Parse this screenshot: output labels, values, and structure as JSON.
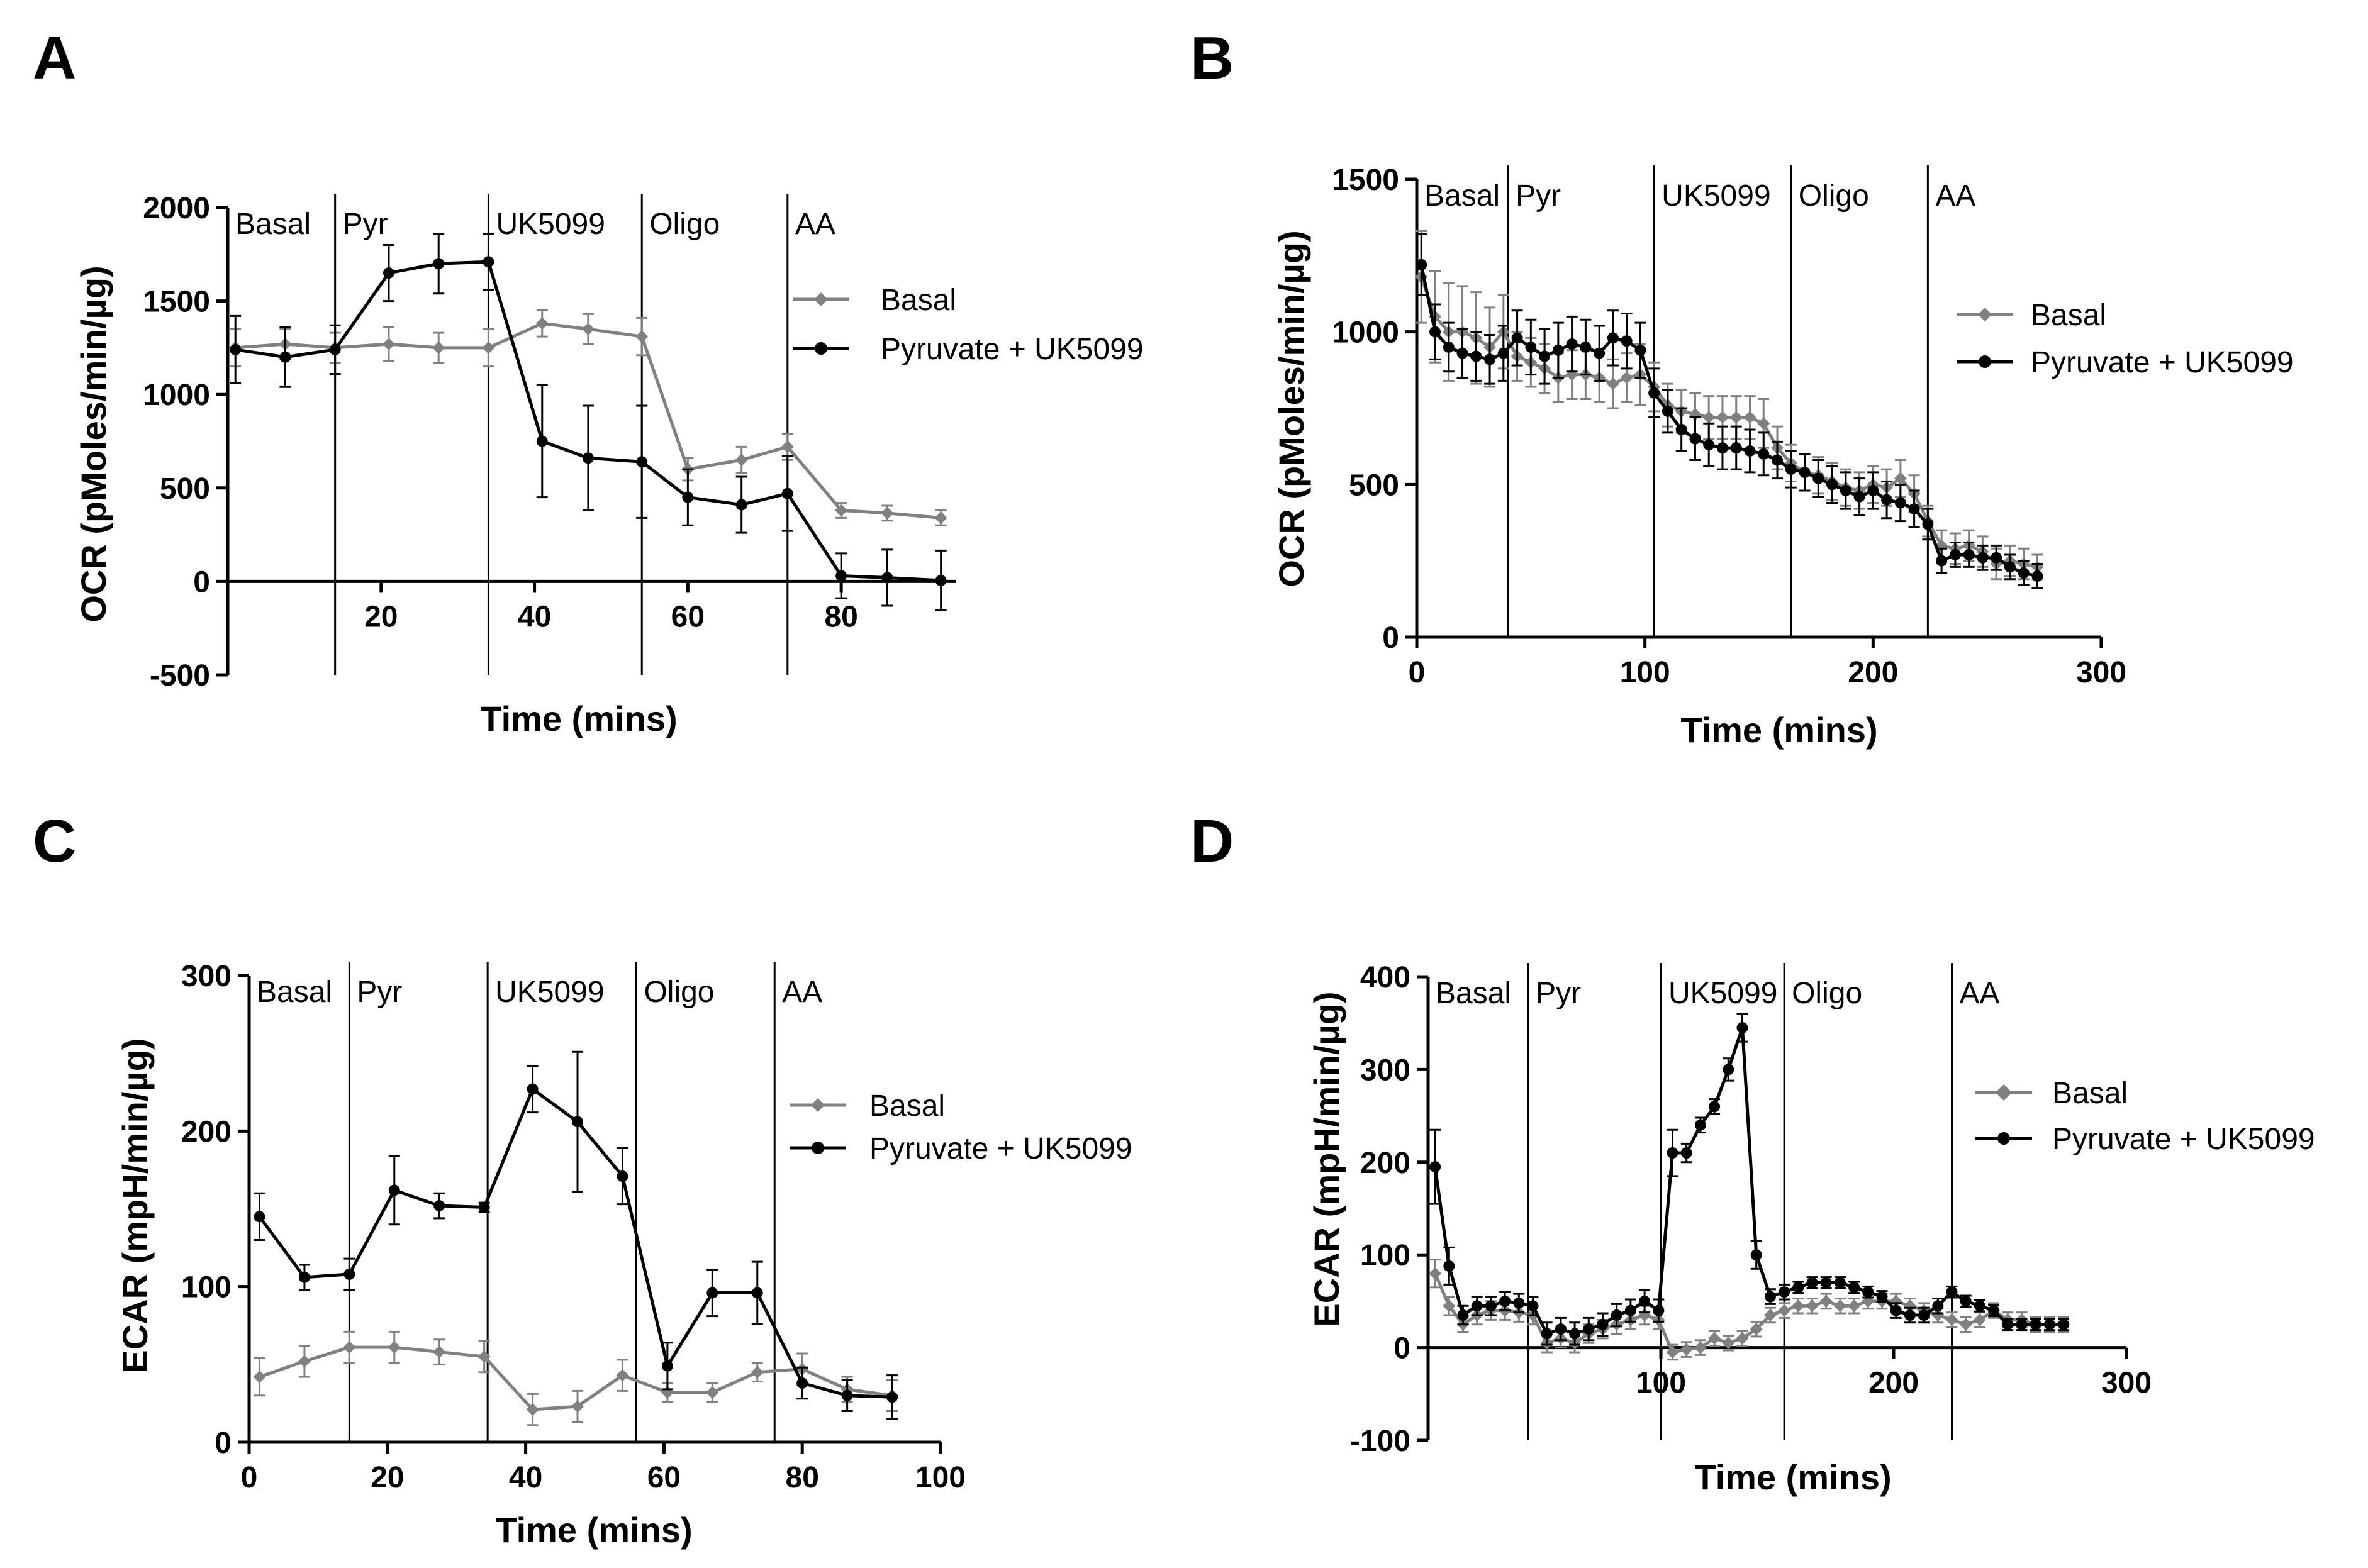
{
  "colors": {
    "basal": "#808080",
    "pyruvate": "#000000",
    "axis": "#000000"
  },
  "chart_data": [
    {
      "panel": "A",
      "type": "line",
      "xlabel": "Time (mins)",
      "ylabel": "OCR (pMoles/min/µg)",
      "xlim": [
        0,
        95
      ],
      "ylim": [
        -500,
        2000
      ],
      "xticks": [
        20,
        40,
        60,
        80
      ],
      "yticks": [
        -500,
        0,
        500,
        1000,
        1500,
        2000
      ],
      "zero_baseline": true,
      "phases": [
        {
          "label": "Basal",
          "x": 0
        },
        {
          "label": "Pyr",
          "x": 14
        },
        {
          "label": "UK5099",
          "x": 34
        },
        {
          "label": "Oligo",
          "x": 54
        },
        {
          "label": "AA",
          "x": 73
        }
      ],
      "legend": {
        "position": "right"
      },
      "series": [
        {
          "name": "Basal",
          "color_key": "basal",
          "marker": "diamond",
          "x": [
            1,
            7.5,
            14,
            21,
            27.5,
            34,
            41,
            47,
            54,
            60,
            67,
            73,
            80,
            86,
            93
          ],
          "y": [
            1250,
            1270,
            1250,
            1270,
            1250,
            1250,
            1380,
            1350,
            1310,
            600,
            650,
            720,
            380,
            365,
            340
          ],
          "err": [
            100,
            80,
            80,
            90,
            80,
            100,
            70,
            80,
            100,
            60,
            70,
            70,
            40,
            40,
            40
          ]
        },
        {
          "name": "Pyruvate + UK5099",
          "color_key": "pyruvate",
          "marker": "circle",
          "x": [
            1,
            7.5,
            14,
            21,
            27.5,
            34,
            41,
            47,
            54,
            60,
            67,
            73,
            80,
            86,
            93
          ],
          "y": [
            1240,
            1200,
            1240,
            1650,
            1700,
            1710,
            750,
            660,
            640,
            450,
            410,
            470,
            30,
            20,
            5
          ],
          "err": [
            180,
            160,
            130,
            150,
            160,
            150,
            300,
            280,
            300,
            150,
            150,
            200,
            120,
            150,
            160
          ]
        }
      ]
    },
    {
      "panel": "B",
      "type": "line",
      "xlabel": "Time (mins)",
      "ylabel": "OCR (pMoles/min/µg)",
      "xlim": [
        0,
        300
      ],
      "ylim": [
        0,
        1500
      ],
      "xticks": [
        0,
        100,
        200,
        300
      ],
      "yticks": [
        0,
        500,
        1000,
        1500
      ],
      "zero_baseline": false,
      "phases": [
        {
          "label": "Basal",
          "x": 0
        },
        {
          "label": "Pyr",
          "x": 40
        },
        {
          "label": "UK5099",
          "x": 104
        },
        {
          "label": "Oligo",
          "x": 164
        },
        {
          "label": "AA",
          "x": 224
        }
      ],
      "legend": {
        "position": "right"
      },
      "series": [
        {
          "name": "Basal",
          "color_key": "basal",
          "marker": "diamond",
          "x": [
            2,
            8,
            14,
            20,
            26,
            32,
            38,
            44,
            50,
            56,
            62,
            68,
            74,
            80,
            86,
            92,
            98,
            104,
            110,
            116,
            122,
            128,
            134,
            140,
            146,
            152,
            158,
            164,
            170,
            176,
            182,
            188,
            194,
            200,
            206,
            212,
            218,
            224,
            230,
            236,
            242,
            248,
            254,
            260,
            266,
            272
          ],
          "y": [
            1180,
            1050,
            1000,
            1000,
            980,
            950,
            1000,
            920,
            900,
            880,
            850,
            860,
            860,
            850,
            830,
            850,
            860,
            820,
            760,
            740,
            730,
            720,
            720,
            720,
            720,
            700,
            620,
            570,
            540,
            530,
            510,
            490,
            480,
            500,
            490,
            520,
            470,
            380,
            300,
            290,
            300,
            280,
            240,
            250,
            240,
            230
          ],
          "err": [
            150,
            150,
            160,
            150,
            150,
            130,
            120,
            80,
            80,
            80,
            80,
            80,
            80,
            80,
            80,
            80,
            100,
            80,
            70,
            70,
            70,
            70,
            70,
            70,
            70,
            80,
            70,
            60,
            60,
            60,
            60,
            60,
            60,
            60,
            60,
            60,
            60,
            50,
            50,
            50,
            50,
            50,
            50,
            50,
            50,
            40
          ]
        },
        {
          "name": "Pyruvate + UK5099",
          "color_key": "pyruvate",
          "marker": "circle",
          "x": [
            2,
            8,
            14,
            20,
            26,
            32,
            38,
            44,
            50,
            56,
            62,
            68,
            74,
            80,
            86,
            92,
            98,
            104,
            110,
            116,
            122,
            128,
            134,
            140,
            146,
            152,
            158,
            164,
            170,
            176,
            182,
            188,
            194,
            200,
            206,
            212,
            218,
            224,
            230,
            236,
            242,
            248,
            254,
            260,
            266,
            272
          ],
          "y": [
            1220,
            1000,
            950,
            930,
            920,
            910,
            930,
            980,
            950,
            920,
            940,
            960,
            950,
            930,
            980,
            970,
            940,
            800,
            740,
            680,
            650,
            630,
            620,
            620,
            610,
            600,
            580,
            550,
            540,
            520,
            500,
            480,
            460,
            480,
            450,
            440,
            420,
            370,
            250,
            270,
            270,
            260,
            260,
            230,
            210,
            200
          ],
          "err": [
            100,
            90,
            80,
            80,
            80,
            80,
            90,
            90,
            90,
            90,
            90,
            90,
            90,
            90,
            90,
            90,
            90,
            80,
            70,
            70,
            70,
            70,
            70,
            70,
            70,
            70,
            60,
            60,
            60,
            60,
            60,
            60,
            60,
            60,
            60,
            60,
            60,
            50,
            40,
            40,
            40,
            40,
            40,
            40,
            40,
            40
          ]
        }
      ]
    },
    {
      "panel": "C",
      "type": "line",
      "xlabel": "Time (mins)",
      "ylabel": "ECAR (mpH/min/µg)",
      "xlim": [
        0,
        100
      ],
      "ylim": [
        0,
        300
      ],
      "xticks": [
        0,
        20,
        40,
        60,
        80,
        100
      ],
      "yticks": [
        0,
        100,
        200,
        300
      ],
      "zero_baseline": false,
      "phases": [
        {
          "label": "Basal",
          "x": 0
        },
        {
          "label": "Pyr",
          "x": 14.5
        },
        {
          "label": "UK5099",
          "x": 34.5
        },
        {
          "label": "Oligo",
          "x": 56
        },
        {
          "label": "AA",
          "x": 76
        }
      ],
      "legend": {
        "position": "right"
      },
      "series": [
        {
          "name": "Basal",
          "color_key": "basal",
          "marker": "diamond",
          "x": [
            1.5,
            8,
            14.5,
            21,
            27.5,
            34,
            41,
            47.5,
            54,
            60.5,
            67,
            73.5,
            80,
            86.5,
            93
          ],
          "y": [
            42,
            52,
            61,
            61,
            58,
            55,
            21,
            23,
            43,
            32,
            32,
            45,
            47,
            34,
            30
          ],
          "err": [
            12,
            10,
            10,
            10,
            8,
            10,
            10,
            10,
            10,
            6,
            6,
            6,
            10,
            8,
            10
          ]
        },
        {
          "name": "Pyruvate + UK5099",
          "color_key": "pyruvate",
          "marker": "circle",
          "x": [
            1.5,
            8,
            14.5,
            21,
            27.5,
            34,
            41,
            47.5,
            54,
            60.5,
            67,
            73.5,
            80,
            86.5,
            93
          ],
          "y": [
            145,
            106,
            108,
            162,
            152,
            151,
            227,
            206,
            171,
            49,
            96,
            96,
            38,
            30,
            29
          ],
          "err": [
            15,
            8,
            10,
            22,
            8,
            3,
            15,
            45,
            18,
            15,
            15,
            20,
            10,
            10,
            14
          ]
        }
      ]
    },
    {
      "panel": "D",
      "type": "line",
      "xlabel": "Time (mins)",
      "ylabel": "ECAR (mpH/min/µg)",
      "xlim": [
        0,
        300
      ],
      "ylim": [
        -100,
        400
      ],
      "xticks": [
        100,
        200,
        300
      ],
      "yticks": [
        -100,
        0,
        100,
        200,
        300,
        400
      ],
      "zero_baseline": true,
      "phases": [
        {
          "label": "Basal",
          "x": 0
        },
        {
          "label": "Pyr",
          "x": 43
        },
        {
          "label": "UK5099",
          "x": 100
        },
        {
          "label": "Oligo",
          "x": 153
        },
        {
          "label": "AA",
          "x": 225
        }
      ],
      "legend": {
        "position": "right"
      },
      "series": [
        {
          "name": "Basal",
          "color_key": "basal",
          "marker": "diamond",
          "x": [
            3,
            9,
            15,
            21,
            27,
            33,
            39,
            45,
            51,
            57,
            63,
            69,
            75,
            81,
            87,
            93,
            99,
            105,
            111,
            117,
            123,
            129,
            135,
            141,
            147,
            153,
            159,
            165,
            171,
            177,
            183,
            189,
            195,
            201,
            207,
            213,
            219,
            225,
            231,
            237,
            243,
            249,
            255,
            261,
            267,
            273
          ],
          "y": [
            80,
            45,
            25,
            35,
            40,
            40,
            38,
            35,
            5,
            10,
            5,
            15,
            20,
            25,
            30,
            35,
            30,
            -5,
            -2,
            0,
            10,
            5,
            10,
            20,
            35,
            40,
            45,
            45,
            50,
            45,
            45,
            50,
            50,
            50,
            45,
            40,
            35,
            30,
            25,
            30,
            40,
            30,
            30,
            25,
            25,
            25
          ],
          "err": [
            15,
            10,
            8,
            10,
            10,
            10,
            10,
            10,
            10,
            10,
            10,
            10,
            10,
            10,
            10,
            10,
            10,
            8,
            8,
            8,
            8,
            8,
            8,
            8,
            8,
            8,
            8,
            8,
            8,
            8,
            8,
            8,
            8,
            8,
            8,
            8,
            8,
            8,
            8,
            8,
            8,
            8,
            8,
            8,
            8,
            8
          ]
        },
        {
          "name": "Pyruvate + UK5099",
          "color_key": "pyruvate",
          "marker": "circle",
          "x": [
            3,
            9,
            15,
            21,
            27,
            33,
            39,
            45,
            51,
            57,
            63,
            69,
            75,
            81,
            87,
            93,
            99,
            105,
            111,
            117,
            123,
            129,
            135,
            141,
            147,
            153,
            159,
            165,
            171,
            177,
            183,
            189,
            195,
            201,
            207,
            213,
            219,
            225,
            231,
            237,
            243,
            249,
            255,
            261,
            267,
            273
          ],
          "y": [
            195,
            88,
            35,
            45,
            45,
            50,
            48,
            45,
            15,
            20,
            15,
            20,
            25,
            35,
            40,
            50,
            40,
            210,
            210,
            240,
            260,
            300,
            345,
            100,
            55,
            60,
            65,
            70,
            70,
            70,
            65,
            60,
            55,
            40,
            35,
            35,
            45,
            60,
            50,
            45,
            40,
            25,
            25,
            25,
            25,
            25
          ],
          "err": [
            40,
            20,
            10,
            10,
            10,
            10,
            10,
            10,
            12,
            12,
            12,
            12,
            12,
            12,
            12,
            12,
            12,
            25,
            10,
            8,
            8,
            12,
            15,
            15,
            8,
            8,
            6,
            6,
            6,
            6,
            6,
            6,
            6,
            8,
            8,
            8,
            8,
            6,
            6,
            6,
            6,
            6,
            6,
            6,
            6,
            6
          ]
        }
      ]
    }
  ]
}
